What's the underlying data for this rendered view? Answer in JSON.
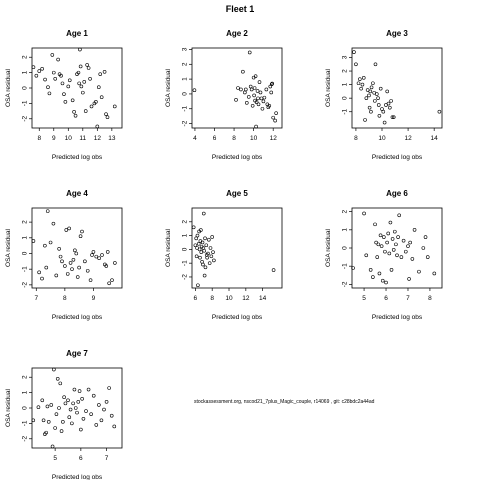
{
  "figure": {
    "title": "Fleet 1",
    "caption": "stockassessment.org, nscod21_7plus_Magic_couple, r14069 , git: c28bdc2a44ad"
  },
  "chart_data": [
    {
      "type": "scatter",
      "title": "Age 1",
      "xlabel": "Predicted log obs",
      "ylabel": "OSA residual",
      "xlim": [
        7.5,
        13.7
      ],
      "ylim": [
        -2.6,
        2.6
      ],
      "xticks": [
        8,
        9,
        10,
        11,
        12,
        13
      ],
      "yticks": [
        -2,
        -1,
        0,
        1,
        2
      ],
      "points": [
        [
          7.6,
          1.35
        ],
        [
          7.8,
          0.8
        ],
        [
          8.0,
          1.1
        ],
        [
          8.2,
          1.25
        ],
        [
          8.4,
          0.55
        ],
        [
          8.6,
          0.05
        ],
        [
          8.7,
          -0.35
        ],
        [
          8.9,
          2.15
        ],
        [
          9.0,
          1.0
        ],
        [
          9.1,
          0.6
        ],
        [
          9.3,
          1.85
        ],
        [
          9.4,
          0.9
        ],
        [
          9.5,
          0.8
        ],
        [
          9.6,
          0.3
        ],
        [
          9.7,
          -0.4
        ],
        [
          9.8,
          -0.9
        ],
        [
          10.0,
          0.1
        ],
        [
          10.1,
          0.5
        ],
        [
          10.3,
          -0.8
        ],
        [
          10.4,
          -1.55
        ],
        [
          10.5,
          -1.8
        ],
        [
          10.6,
          0.9
        ],
        [
          10.7,
          1.0
        ],
        [
          10.75,
          0.3
        ],
        [
          10.8,
          2.5
        ],
        [
          10.85,
          1.4
        ],
        [
          10.9,
          0.1
        ],
        [
          11.0,
          -0.3
        ],
        [
          11.1,
          0.4
        ],
        [
          11.2,
          -1.5
        ],
        [
          11.3,
          1.5
        ],
        [
          11.4,
          1.3
        ],
        [
          11.5,
          0.6
        ],
        [
          11.6,
          -1.2
        ],
        [
          11.8,
          -1.0
        ],
        [
          11.9,
          -0.9
        ],
        [
          12.0,
          -2.5
        ],
        [
          12.1,
          0.05
        ],
        [
          12.2,
          0.9
        ],
        [
          12.3,
          -0.6
        ],
        [
          12.5,
          1.05
        ],
        [
          12.6,
          -1.7
        ],
        [
          12.7,
          -1.9
        ],
        [
          13.2,
          -1.2
        ]
      ]
    },
    {
      "type": "scatter",
      "title": "Age 2",
      "xlabel": "Predicted log obs",
      "ylabel": "OSA residual",
      "xlim": [
        3.7,
        12.9
      ],
      "ylim": [
        -2.3,
        3.1
      ],
      "xticks": [
        4,
        6,
        8,
        10,
        12
      ],
      "yticks": [
        -2,
        -1,
        0,
        1,
        2,
        3
      ],
      "points": [
        [
          3.95,
          0.25
        ],
        [
          8.2,
          -0.4
        ],
        [
          8.4,
          0.4
        ],
        [
          8.7,
          0.3
        ],
        [
          8.9,
          1.5
        ],
        [
          9.1,
          0.1
        ],
        [
          9.2,
          0.3
        ],
        [
          9.3,
          -0.6
        ],
        [
          9.5,
          -0.2
        ],
        [
          9.6,
          2.8
        ],
        [
          9.7,
          0.5
        ],
        [
          9.8,
          0.3
        ],
        [
          9.9,
          -0.8
        ],
        [
          10.0,
          1.1
        ],
        [
          10.05,
          -0.1
        ],
        [
          10.1,
          0.4
        ],
        [
          10.15,
          -0.45
        ],
        [
          10.2,
          1.2
        ],
        [
          10.25,
          -2.2
        ],
        [
          10.3,
          -0.55
        ],
        [
          10.4,
          0.2
        ],
        [
          10.45,
          -0.3
        ],
        [
          10.5,
          -0.7
        ],
        [
          10.6,
          0.8
        ],
        [
          10.7,
          0.1
        ],
        [
          10.8,
          -0.3
        ],
        [
          10.9,
          -1.0
        ],
        [
          11.0,
          -0.5
        ],
        [
          11.1,
          -0.25
        ],
        [
          11.3,
          0.3
        ],
        [
          11.4,
          -0.7
        ],
        [
          11.5,
          -0.9
        ],
        [
          11.6,
          -0.8
        ],
        [
          11.7,
          0.5
        ],
        [
          11.8,
          0.1
        ],
        [
          11.85,
          0.65
        ],
        [
          11.9,
          0.7
        ],
        [
          12.0,
          -1.6
        ],
        [
          12.2,
          -1.8
        ],
        [
          12.3,
          -1.3
        ]
      ]
    },
    {
      "type": "scatter",
      "title": "Age 3",
      "xlabel": "Predicted log obs",
      "ylabel": "OSA residual",
      "xlim": [
        7.7,
        14.6
      ],
      "ylim": [
        -2.2,
        3.7
      ],
      "xticks": [
        8,
        10,
        12,
        14
      ],
      "yticks": [
        -1,
        0,
        1,
        2,
        3
      ],
      "points": [
        [
          7.85,
          3.4
        ],
        [
          8.0,
          2.5
        ],
        [
          8.2,
          1.1
        ],
        [
          8.3,
          1.4
        ],
        [
          8.4,
          0.7
        ],
        [
          8.5,
          1.0
        ],
        [
          8.6,
          1.5
        ],
        [
          8.7,
          -1.6
        ],
        [
          8.8,
          0.0
        ],
        [
          8.9,
          0.6
        ],
        [
          9.0,
          0.2
        ],
        [
          9.05,
          -0.7
        ],
        [
          9.1,
          0.5
        ],
        [
          9.15,
          -1.0
        ],
        [
          9.2,
          0.8
        ],
        [
          9.3,
          1.1
        ],
        [
          9.4,
          0.4
        ],
        [
          9.45,
          -0.2
        ],
        [
          9.5,
          2.5
        ],
        [
          9.6,
          0.3
        ],
        [
          9.7,
          0.0
        ],
        [
          9.75,
          -0.5
        ],
        [
          9.8,
          -1.3
        ],
        [
          9.9,
          0.7
        ],
        [
          10.0,
          -0.8
        ],
        [
          10.1,
          -1.0
        ],
        [
          10.2,
          -1.8
        ],
        [
          10.3,
          -0.5
        ],
        [
          10.4,
          0.5
        ],
        [
          10.5,
          -0.4
        ],
        [
          10.6,
          -0.7
        ],
        [
          10.7,
          -0.2
        ],
        [
          10.8,
          -1.4
        ],
        [
          10.9,
          -1.4
        ],
        [
          14.4,
          -1.0
        ]
      ]
    },
    {
      "type": "scatter",
      "title": "Age 4",
      "xlabel": "Predicted log obs",
      "ylabel": "OSA residual",
      "xlim": [
        6.85,
        10.0
      ],
      "ylim": [
        -2.2,
        2.9
      ],
      "xticks": [
        7,
        8,
        9
      ],
      "yticks": [
        -2,
        -1,
        0,
        1,
        2
      ],
      "points": [
        [
          6.9,
          0.8
        ],
        [
          7.1,
          -1.2
        ],
        [
          7.2,
          -1.6
        ],
        [
          7.3,
          0.5
        ],
        [
          7.35,
          -0.9
        ],
        [
          7.4,
          2.7
        ],
        [
          7.5,
          0.7
        ],
        [
          7.6,
          1.9
        ],
        [
          7.7,
          -1.4
        ],
        [
          7.8,
          0.3
        ],
        [
          7.85,
          -0.2
        ],
        [
          7.9,
          -0.5
        ],
        [
          8.0,
          -0.8
        ],
        [
          8.05,
          1.5
        ],
        [
          8.1,
          -1.3
        ],
        [
          8.15,
          1.6
        ],
        [
          8.2,
          -0.6
        ],
        [
          8.25,
          -1.0
        ],
        [
          8.3,
          -0.4
        ],
        [
          8.35,
          0.2
        ],
        [
          8.4,
          0.0
        ],
        [
          8.45,
          -1.5
        ],
        [
          8.5,
          -0.9
        ],
        [
          8.55,
          1.1
        ],
        [
          8.6,
          1.4
        ],
        [
          8.7,
          -0.5
        ],
        [
          8.8,
          -1.1
        ],
        [
          8.9,
          -1.7
        ],
        [
          8.95,
          -0.1
        ],
        [
          9.0,
          0.1
        ],
        [
          9.1,
          -0.2
        ],
        [
          9.2,
          -0.3
        ],
        [
          9.3,
          -0.1
        ],
        [
          9.4,
          -0.7
        ],
        [
          9.45,
          -0.8
        ],
        [
          9.5,
          0.1
        ],
        [
          9.55,
          -1.9
        ],
        [
          9.65,
          -1.7
        ],
        [
          9.75,
          -0.6
        ]
      ]
    },
    {
      "type": "scatter",
      "title": "Age 5",
      "xlabel": "Predicted log obs",
      "ylabel": "OSA residual",
      "xlim": [
        5.6,
        16.3
      ],
      "ylim": [
        -2.8,
        3.0
      ],
      "xticks": [
        6,
        8,
        10,
        12,
        14
      ],
      "yticks": [
        -2,
        -1,
        0,
        1,
        2
      ],
      "points": [
        [
          5.8,
          1.6
        ],
        [
          6.0,
          0.3
        ],
        [
          6.1,
          0.8
        ],
        [
          6.15,
          -0.5
        ],
        [
          6.2,
          0.1
        ],
        [
          6.25,
          1.0
        ],
        [
          6.3,
          -2.6
        ],
        [
          6.4,
          0.4
        ],
        [
          6.45,
          1.3
        ],
        [
          6.5,
          0.0
        ],
        [
          6.55,
          -0.6
        ],
        [
          6.6,
          0.6
        ],
        [
          6.65,
          1.4
        ],
        [
          6.7,
          -0.2
        ],
        [
          6.75,
          0.2
        ],
        [
          6.8,
          -0.9
        ],
        [
          6.85,
          0.5
        ],
        [
          6.9,
          -1.1
        ],
        [
          6.95,
          0.1
        ],
        [
          7.0,
          2.6
        ],
        [
          7.05,
          -0.1
        ],
        [
          7.1,
          -1.9
        ],
        [
          7.15,
          0.8
        ],
        [
          7.2,
          -1.3
        ],
        [
          7.3,
          0.3
        ],
        [
          7.35,
          -0.4
        ],
        [
          7.4,
          -0.6
        ],
        [
          7.5,
          -0.3
        ],
        [
          7.6,
          0.7
        ],
        [
          7.7,
          -1.0
        ],
        [
          7.8,
          0.1
        ],
        [
          7.9,
          -0.5
        ],
        [
          8.0,
          0.9
        ],
        [
          8.1,
          -0.2
        ],
        [
          8.2,
          -0.8
        ],
        [
          15.3,
          -1.5
        ]
      ]
    },
    {
      "type": "scatter",
      "title": "Age 6",
      "xlabel": "Predicted log obs",
      "ylabel": "OSA residual",
      "xlim": [
        4.45,
        8.55
      ],
      "ylim": [
        -2.2,
        2.2
      ],
      "xticks": [
        5,
        6,
        7,
        8
      ],
      "yticks": [
        -2,
        -1,
        0,
        1,
        2
      ],
      "points": [
        [
          4.5,
          -1.1
        ],
        [
          5.0,
          1.9
        ],
        [
          5.1,
          -0.4
        ],
        [
          5.3,
          -1.2
        ],
        [
          5.4,
          -1.6
        ],
        [
          5.5,
          1.3
        ],
        [
          5.55,
          0.3
        ],
        [
          5.6,
          -0.5
        ],
        [
          5.65,
          0.2
        ],
        [
          5.7,
          -1.4
        ],
        [
          5.75,
          0.7
        ],
        [
          5.8,
          0.1
        ],
        [
          5.85,
          -1.8
        ],
        [
          5.9,
          0.6
        ],
        [
          5.95,
          -0.2
        ],
        [
          6.0,
          -1.9
        ],
        [
          6.05,
          0.3
        ],
        [
          6.1,
          0.8
        ],
        [
          6.15,
          -0.3
        ],
        [
          6.2,
          1.4
        ],
        [
          6.25,
          -1.2
        ],
        [
          6.3,
          0.5
        ],
        [
          6.35,
          -0.1
        ],
        [
          6.4,
          0.9
        ],
        [
          6.45,
          0.2
        ],
        [
          6.5,
          -0.4
        ],
        [
          6.55,
          0.6
        ],
        [
          6.6,
          1.8
        ],
        [
          6.7,
          -0.5
        ],
        [
          6.8,
          0.4
        ],
        [
          6.9,
          -0.2
        ],
        [
          7.0,
          0.1
        ],
        [
          7.05,
          -1.7
        ],
        [
          7.1,
          0.3
        ],
        [
          7.2,
          -0.6
        ],
        [
          7.3,
          1.0
        ],
        [
          7.5,
          -1.3
        ],
        [
          7.7,
          0.0
        ],
        [
          7.8,
          0.6
        ],
        [
          7.9,
          -0.5
        ],
        [
          8.2,
          -1.4
        ]
      ]
    },
    {
      "type": "scatter",
      "title": "Age 7",
      "xlabel": "Predicted log obs",
      "ylabel": "OSA residual",
      "xlim": [
        4.1,
        7.6
      ],
      "ylim": [
        -2.6,
        2.6
      ],
      "xticks": [
        5,
        6,
        7
      ],
      "yticks": [
        -2,
        -1,
        0,
        1,
        2
      ],
      "points": [
        [
          4.15,
          -0.8
        ],
        [
          4.35,
          0.05
        ],
        [
          4.5,
          0.5
        ],
        [
          4.55,
          -0.8
        ],
        [
          4.6,
          -1.7
        ],
        [
          4.65,
          -1.6
        ],
        [
          4.7,
          0.1
        ],
        [
          4.75,
          -0.9
        ],
        [
          4.85,
          0.2
        ],
        [
          4.9,
          -2.5
        ],
        [
          4.95,
          2.5
        ],
        [
          5.0,
          -1.3
        ],
        [
          5.05,
          -0.4
        ],
        [
          5.1,
          1.9
        ],
        [
          5.15,
          0.0
        ],
        [
          5.2,
          1.6
        ],
        [
          5.25,
          -1.5
        ],
        [
          5.3,
          -0.9
        ],
        [
          5.35,
          0.7
        ],
        [
          5.4,
          0.3
        ],
        [
          5.5,
          0.5
        ],
        [
          5.55,
          -0.6
        ],
        [
          5.6,
          -0.1
        ],
        [
          5.65,
          -1.0
        ],
        [
          5.7,
          0.3
        ],
        [
          5.75,
          1.2
        ],
        [
          5.8,
          0.0
        ],
        [
          5.85,
          -0.3
        ],
        [
          5.9,
          0.4
        ],
        [
          5.95,
          1.1
        ],
        [
          6.0,
          -1.4
        ],
        [
          6.05,
          0.6
        ],
        [
          6.1,
          -0.7
        ],
        [
          6.2,
          -0.2
        ],
        [
          6.3,
          1.2
        ],
        [
          6.4,
          -0.4
        ],
        [
          6.5,
          0.8
        ],
        [
          6.6,
          -1.1
        ],
        [
          6.7,
          0.2
        ],
        [
          6.8,
          -0.8
        ],
        [
          6.9,
          -0.1
        ],
        [
          7.0,
          0.4
        ],
        [
          7.1,
          1.3
        ],
        [
          7.2,
          -0.5
        ],
        [
          7.3,
          -1.2
        ]
      ]
    }
  ]
}
